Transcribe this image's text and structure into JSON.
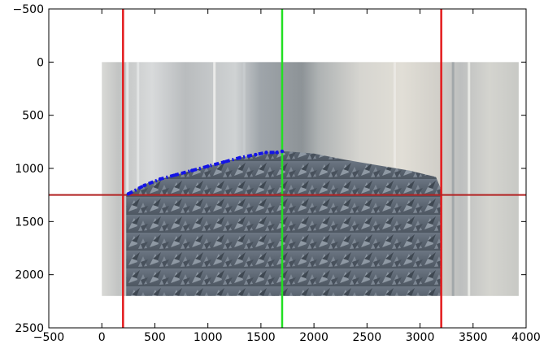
{
  "chart_data": {
    "type": "line",
    "title": "",
    "xlabel": "",
    "ylabel": "",
    "xlim": [
      -500,
      4000
    ],
    "ylim": [
      2500,
      -500
    ],
    "y_inverted": true,
    "grid": false,
    "x_ticks": [
      "−500",
      "0",
      "500",
      "1000",
      "1500",
      "2000",
      "2500",
      "3000",
      "3500",
      "4000"
    ],
    "y_ticks": [
      "−500",
      "0",
      "500",
      "1000",
      "1500",
      "2000",
      "2500"
    ],
    "background_image": {
      "description": "photograph of a transparent cylinder partly filled with a pile of grey star-shaped particles",
      "extent_x": [
        0,
        3930
      ],
      "extent_y": [
        0,
        2200
      ]
    },
    "vertical_lines": [
      {
        "x": 200,
        "color": "#e31a1c"
      },
      {
        "x": 1700,
        "color": "#22e022"
      },
      {
        "x": 3200,
        "color": "#e31a1c"
      }
    ],
    "horizontal_lines": [
      {
        "y": 1250,
        "color": "#b22222"
      }
    ],
    "series": [
      {
        "style": "dash-dot",
        "color": "#1414e6",
        "x": [
          250,
          400,
          550,
          700,
          850,
          1000,
          1150,
          1300,
          1450,
          1550,
          1650,
          1700
        ],
        "y": [
          1240,
          1160,
          1100,
          1060,
          1020,
          980,
          940,
          900,
          870,
          850,
          850,
          840
        ]
      }
    ]
  }
}
